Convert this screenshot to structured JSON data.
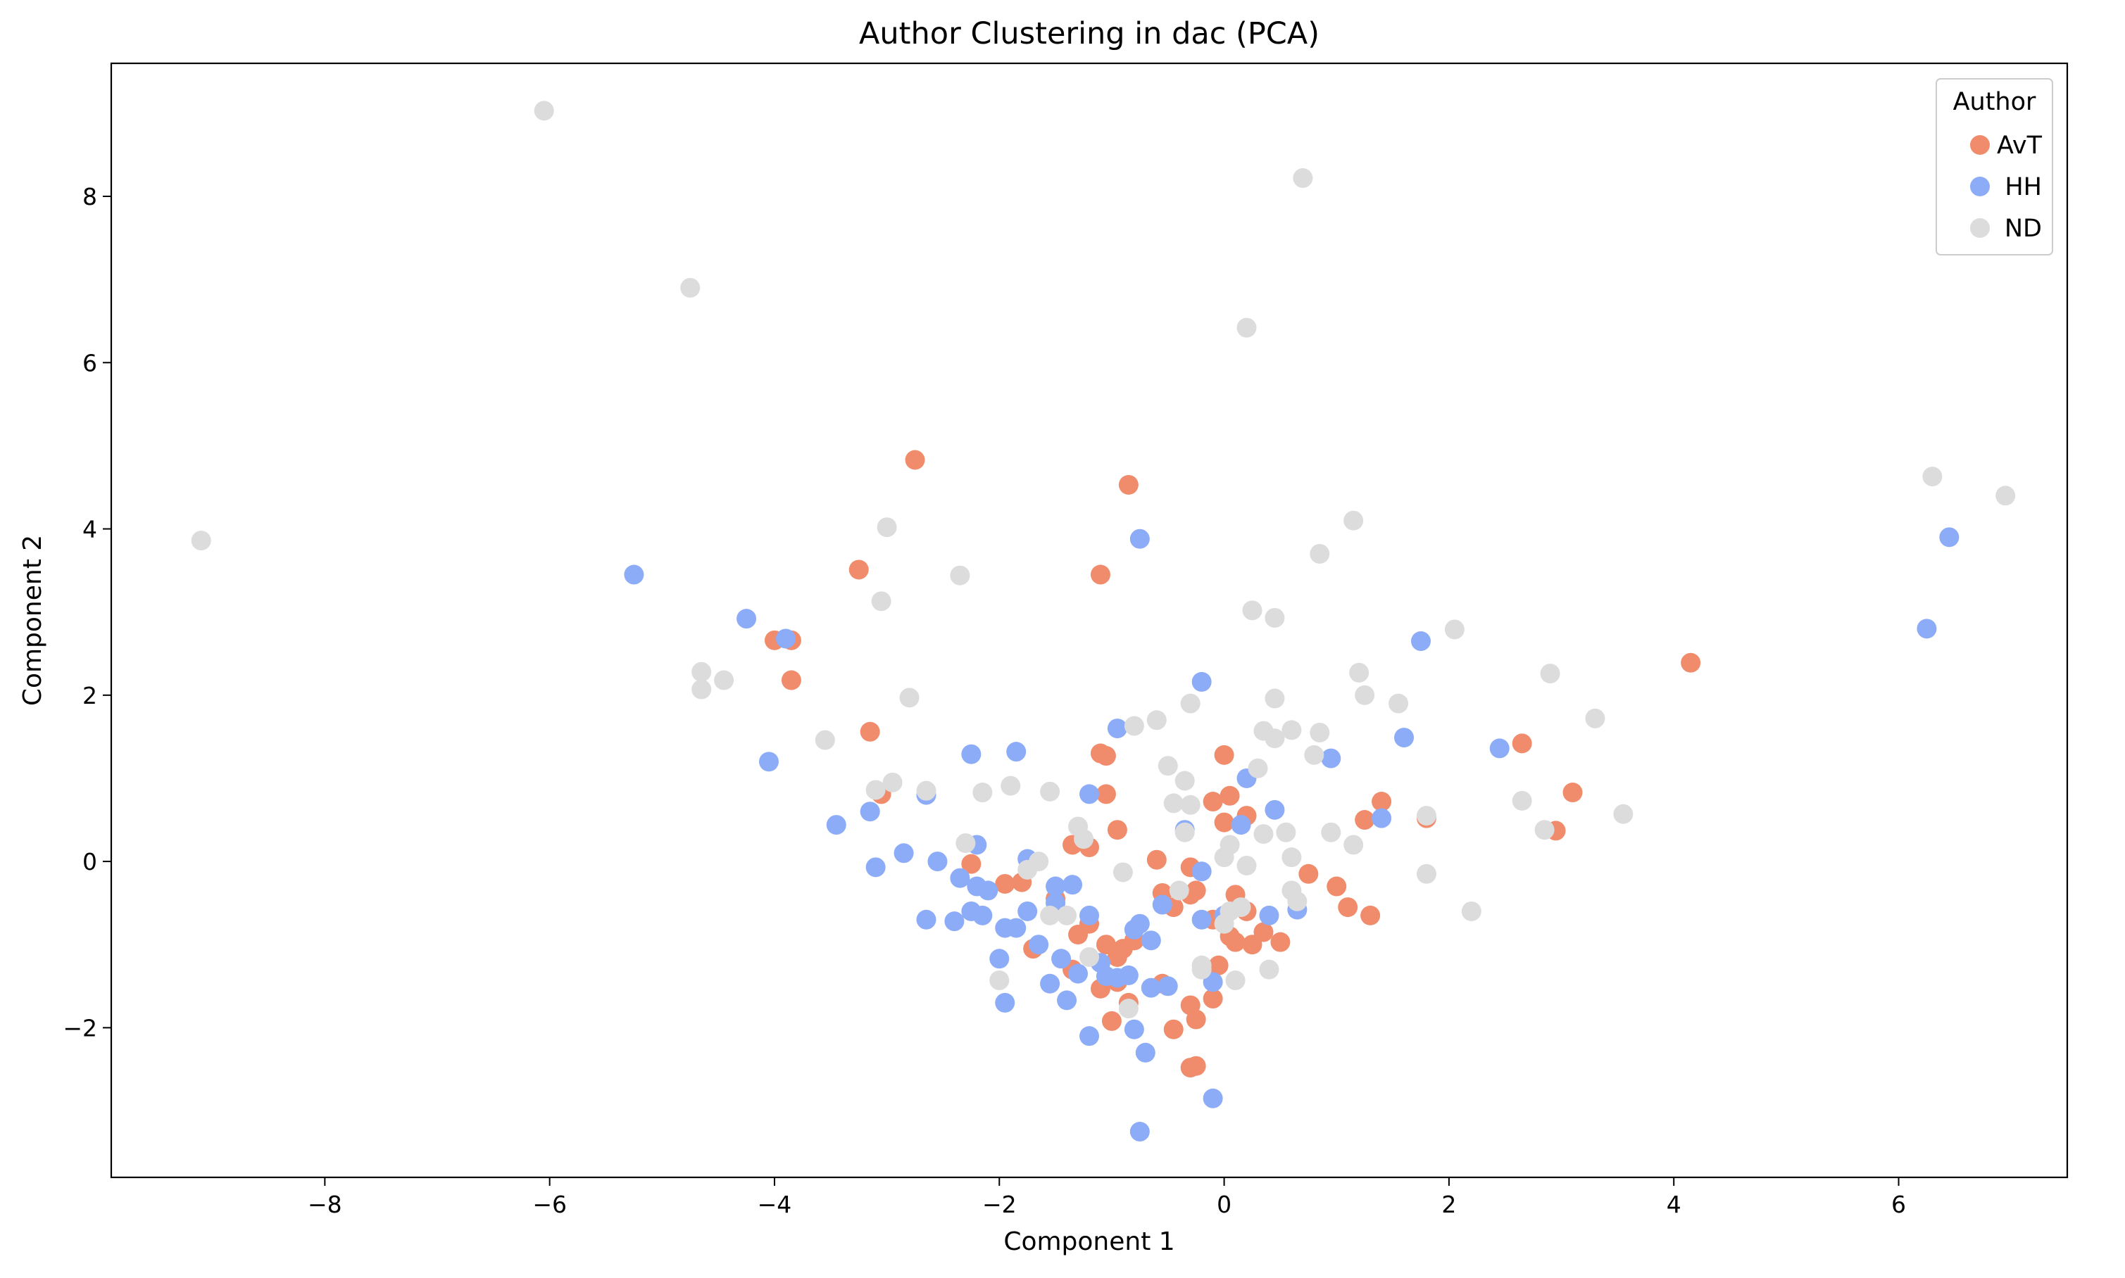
{
  "chart_data": {
    "type": "scatter",
    "title": "Author Clustering in dac (PCA)",
    "xlabel": "Component 1",
    "ylabel": "Component 2",
    "xlim": [
      -9.9,
      7.5
    ],
    "ylim": [
      -3.8,
      9.6
    ],
    "xticks": [
      -8,
      -6,
      -4,
      -2,
      0,
      2,
      4,
      6
    ],
    "yticks": [
      -2,
      0,
      2,
      4,
      6,
      8
    ],
    "xtick_labels": [
      "−8",
      "−6",
      "−4",
      "−2",
      "0",
      "2",
      "4",
      "6"
    ],
    "ytick_labels": [
      "−2",
      "0",
      "2",
      "4",
      "6",
      "8"
    ],
    "grid": false,
    "legend": {
      "title": "Author",
      "position": "top-right"
    },
    "series": [
      {
        "name": "AvT",
        "color": "#f08c6c",
        "points": [
          [
            -2.75,
            4.83
          ],
          [
            -0.85,
            4.53
          ],
          [
            -3.25,
            3.51
          ],
          [
            -1.1,
            3.45
          ],
          [
            -4.0,
            2.66
          ],
          [
            -3.85,
            2.66
          ],
          [
            -3.85,
            2.18
          ],
          [
            4.15,
            2.39
          ],
          [
            -3.15,
            1.56
          ],
          [
            -1.1,
            1.3
          ],
          [
            -1.05,
            1.27
          ],
          [
            0.0,
            1.28
          ],
          [
            2.65,
            1.42
          ],
          [
            3.1,
            0.83
          ],
          [
            2.95,
            0.37
          ],
          [
            1.4,
            0.72
          ],
          [
            1.25,
            0.5
          ],
          [
            1.8,
            0.52
          ],
          [
            -3.05,
            0.81
          ],
          [
            -1.05,
            0.81
          ],
          [
            -0.95,
            0.38
          ],
          [
            -1.35,
            0.2
          ],
          [
            -1.2,
            0.17
          ],
          [
            -0.6,
            0.02
          ],
          [
            -2.25,
            -0.03
          ],
          [
            -0.3,
            -0.07
          ],
          [
            0.05,
            0.79
          ],
          [
            -0.1,
            0.72
          ],
          [
            0.2,
            0.55
          ],
          [
            0.0,
            0.47
          ],
          [
            0.75,
            -0.15
          ],
          [
            -1.8,
            -0.25
          ],
          [
            -1.95,
            -0.27
          ],
          [
            -0.25,
            -0.35
          ],
          [
            -0.55,
            -0.38
          ],
          [
            -0.45,
            -0.55
          ],
          [
            0.1,
            -0.4
          ],
          [
            1.0,
            -0.3
          ],
          [
            1.1,
            -0.55
          ],
          [
            1.3,
            -0.65
          ],
          [
            -1.5,
            -0.45
          ],
          [
            -1.2,
            -0.75
          ],
          [
            -1.3,
            -0.88
          ],
          [
            -0.3,
            -0.4
          ],
          [
            -0.1,
            -0.7
          ],
          [
            0.35,
            -0.85
          ],
          [
            0.5,
            -0.97
          ],
          [
            0.25,
            -1.0
          ],
          [
            0.1,
            -0.97
          ],
          [
            0.05,
            -0.9
          ],
          [
            -1.7,
            -1.05
          ],
          [
            -1.05,
            -1.0
          ],
          [
            -0.95,
            -1.15
          ],
          [
            -0.9,
            -1.05
          ],
          [
            -0.8,
            -0.95
          ],
          [
            -0.95,
            -1.45
          ],
          [
            -0.55,
            -1.47
          ],
          [
            -0.85,
            -1.7
          ],
          [
            -1.35,
            -1.3
          ],
          [
            -0.05,
            -1.25
          ],
          [
            -1.1,
            -1.53
          ],
          [
            -1.0,
            -1.92
          ],
          [
            -0.45,
            -2.02
          ],
          [
            -0.1,
            -1.65
          ],
          [
            -0.3,
            -1.73
          ],
          [
            -0.25,
            -1.9
          ],
          [
            -0.3,
            -2.48
          ],
          [
            -0.25,
            -2.46
          ],
          [
            0.15,
            -0.55
          ],
          [
            0.2,
            -0.6
          ]
        ]
      },
      {
        "name": "HH",
        "color": "#8cacf8",
        "points": [
          [
            6.45,
            3.9
          ],
          [
            -5.25,
            3.45
          ],
          [
            -0.75,
            3.88
          ],
          [
            -4.25,
            2.92
          ],
          [
            -3.9,
            2.68
          ],
          [
            6.25,
            2.8
          ],
          [
            1.75,
            2.65
          ],
          [
            -0.2,
            2.16
          ],
          [
            -4.05,
            1.2
          ],
          [
            -2.25,
            1.29
          ],
          [
            -1.85,
            1.32
          ],
          [
            -0.95,
            1.6
          ],
          [
            1.6,
            1.49
          ],
          [
            2.45,
            1.36
          ],
          [
            0.95,
            1.24
          ],
          [
            -1.2,
            0.81
          ],
          [
            0.2,
            1.0
          ],
          [
            -2.65,
            0.8
          ],
          [
            -3.45,
            0.44
          ],
          [
            -3.15,
            0.6
          ],
          [
            0.45,
            0.62
          ],
          [
            1.4,
            0.52
          ],
          [
            0.15,
            0.44
          ],
          [
            -0.35,
            0.38
          ],
          [
            -2.2,
            0.2
          ],
          [
            -2.85,
            0.1
          ],
          [
            -3.1,
            -0.07
          ],
          [
            -2.55,
            0.0
          ],
          [
            -1.75,
            0.03
          ],
          [
            -2.35,
            -0.2
          ],
          [
            -2.2,
            -0.3
          ],
          [
            -2.1,
            -0.35
          ],
          [
            -1.5,
            -0.3
          ],
          [
            -1.35,
            -0.28
          ],
          [
            -0.2,
            -0.12
          ],
          [
            -2.25,
            -0.6
          ],
          [
            -2.15,
            -0.65
          ],
          [
            -2.65,
            -0.7
          ],
          [
            -2.4,
            -0.72
          ],
          [
            -1.75,
            -0.6
          ],
          [
            -1.5,
            -0.5
          ],
          [
            -1.2,
            -0.65
          ],
          [
            -0.55,
            -0.52
          ],
          [
            -0.75,
            -0.75
          ],
          [
            -0.8,
            -0.82
          ],
          [
            -0.2,
            -0.7
          ],
          [
            0.0,
            -0.65
          ],
          [
            0.4,
            -0.65
          ],
          [
            0.65,
            -0.58
          ],
          [
            -1.95,
            -0.8
          ],
          [
            -1.85,
            -0.8
          ],
          [
            -1.65,
            -1.0
          ],
          [
            -1.45,
            -1.17
          ],
          [
            -1.3,
            -1.35
          ],
          [
            -1.1,
            -1.22
          ],
          [
            -1.05,
            -1.38
          ],
          [
            -0.85,
            -1.37
          ],
          [
            -0.65,
            -0.95
          ],
          [
            -0.5,
            -1.5
          ],
          [
            -0.65,
            -1.52
          ],
          [
            -0.95,
            -1.4
          ],
          [
            -0.1,
            -1.45
          ],
          [
            -1.55,
            -1.47
          ],
          [
            -1.4,
            -1.67
          ],
          [
            -2.0,
            -1.17
          ],
          [
            -1.95,
            -1.7
          ],
          [
            -1.2,
            -2.1
          ],
          [
            -0.8,
            -2.02
          ],
          [
            -0.7,
            -2.3
          ],
          [
            -0.1,
            -2.85
          ],
          [
            -0.75,
            -3.25
          ]
        ]
      },
      {
        "name": "ND",
        "color": "#dcdcdc",
        "points": [
          [
            -6.05,
            9.03
          ],
          [
            0.7,
            8.22
          ],
          [
            -4.75,
            6.9
          ],
          [
            0.2,
            6.42
          ],
          [
            6.3,
            4.63
          ],
          [
            6.95,
            4.4
          ],
          [
            -9.1,
            3.86
          ],
          [
            -3.0,
            4.02
          ],
          [
            1.15,
            4.1
          ],
          [
            0.85,
            3.7
          ],
          [
            -2.35,
            3.44
          ],
          [
            -3.05,
            3.13
          ],
          [
            0.25,
            3.02
          ],
          [
            0.45,
            2.93
          ],
          [
            2.05,
            2.79
          ],
          [
            -4.65,
            2.28
          ],
          [
            -4.65,
            2.07
          ],
          [
            -4.45,
            2.18
          ],
          [
            1.2,
            2.27
          ],
          [
            2.9,
            2.26
          ],
          [
            -2.8,
            1.97
          ],
          [
            0.45,
            1.96
          ],
          [
            1.25,
            2.0
          ],
          [
            1.55,
            1.9
          ],
          [
            -0.3,
            1.9
          ],
          [
            -0.6,
            1.7
          ],
          [
            -0.8,
            1.63
          ],
          [
            0.35,
            1.57
          ],
          [
            0.6,
            1.58
          ],
          [
            0.85,
            1.55
          ],
          [
            0.45,
            1.48
          ],
          [
            3.3,
            1.72
          ],
          [
            0.8,
            1.28
          ],
          [
            0.3,
            1.12
          ],
          [
            -0.5,
            1.15
          ],
          [
            -3.55,
            1.46
          ],
          [
            -0.35,
            0.97
          ],
          [
            -2.95,
            0.95
          ],
          [
            -3.1,
            0.86
          ],
          [
            -2.65,
            0.85
          ],
          [
            -2.15,
            0.83
          ],
          [
            -1.9,
            0.91
          ],
          [
            -1.55,
            0.84
          ],
          [
            -0.45,
            0.7
          ],
          [
            -0.3,
            0.68
          ],
          [
            2.65,
            0.73
          ],
          [
            3.55,
            0.57
          ],
          [
            1.8,
            0.55
          ],
          [
            2.85,
            0.38
          ],
          [
            0.35,
            0.33
          ],
          [
            0.95,
            0.35
          ],
          [
            0.55,
            0.35
          ],
          [
            -0.35,
            0.35
          ],
          [
            -1.3,
            0.42
          ],
          [
            1.15,
            0.2
          ],
          [
            -1.25,
            0.27
          ],
          [
            -2.3,
            0.22
          ],
          [
            0.05,
            0.2
          ],
          [
            0.0,
            0.05
          ],
          [
            0.6,
            0.05
          ],
          [
            -1.65,
            0.0
          ],
          [
            0.2,
            -0.05
          ],
          [
            -1.75,
            -0.1
          ],
          [
            -0.9,
            -0.13
          ],
          [
            1.8,
            -0.15
          ],
          [
            -0.4,
            -0.35
          ],
          [
            0.6,
            -0.35
          ],
          [
            0.65,
            -0.48
          ],
          [
            0.15,
            -0.55
          ],
          [
            0.05,
            -0.6
          ],
          [
            -1.55,
            -0.65
          ],
          [
            -1.4,
            -0.65
          ],
          [
            2.2,
            -0.6
          ],
          [
            0.0,
            -0.75
          ],
          [
            -1.2,
            -1.15
          ],
          [
            -0.2,
            -1.25
          ],
          [
            0.4,
            -1.3
          ],
          [
            -0.2,
            -1.3
          ],
          [
            -2.0,
            -1.43
          ],
          [
            0.1,
            -1.43
          ],
          [
            -0.85,
            -1.77
          ]
        ]
      }
    ]
  }
}
